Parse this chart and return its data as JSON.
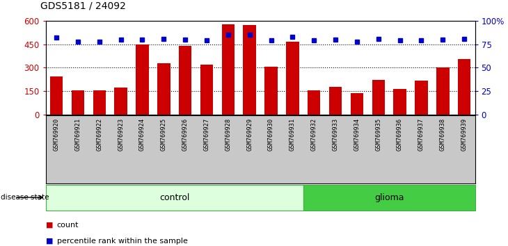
{
  "title": "GDS5181 / 24092",
  "samples": [
    "GSM769920",
    "GSM769921",
    "GSM769922",
    "GSM769923",
    "GSM769924",
    "GSM769925",
    "GSM769926",
    "GSM769927",
    "GSM769928",
    "GSM769929",
    "GSM769930",
    "GSM769931",
    "GSM769932",
    "GSM769933",
    "GSM769934",
    "GSM769935",
    "GSM769936",
    "GSM769937",
    "GSM769938",
    "GSM769939"
  ],
  "counts": [
    245,
    155,
    155,
    170,
    450,
    330,
    440,
    320,
    580,
    575,
    305,
    465,
    155,
    175,
    135,
    220,
    165,
    215,
    300,
    355
  ],
  "percentiles": [
    82,
    78,
    78,
    80,
    80,
    81,
    80,
    79,
    85,
    85,
    79,
    83,
    79,
    80,
    78,
    81,
    79,
    79,
    80,
    81
  ],
  "control_count": 12,
  "glioma_count": 8,
  "bar_color": "#cc0000",
  "dot_color": "#0000cc",
  "ylim_left": [
    0,
    600
  ],
  "ylim_right": [
    0,
    100
  ],
  "yticks_left": [
    0,
    150,
    300,
    450,
    600
  ],
  "yticks_right": [
    0,
    25,
    50,
    75,
    100
  ],
  "ytick_labels_left": [
    "0",
    "150",
    "300",
    "450",
    "600"
  ],
  "ytick_labels_right": [
    "0",
    "25",
    "50",
    "75",
    "100%"
  ],
  "grid_lines": [
    150,
    300,
    450
  ],
  "control_color": "#ddffdd",
  "control_border": "#44aa44",
  "glioma_color": "#44cc44",
  "glioma_border": "#44aa44",
  "xlabels_bg": "#c8c8c8",
  "disease_state_label": "disease state",
  "control_label": "control",
  "glioma_label": "glioma",
  "legend_count": "count",
  "legend_pct": "percentile rank within the sample"
}
